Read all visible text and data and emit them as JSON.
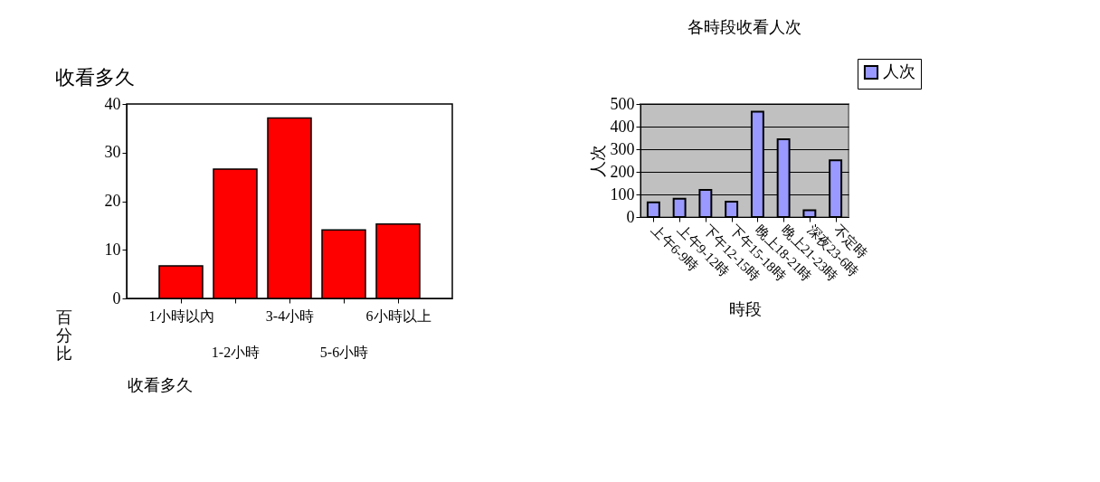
{
  "chart_data": [
    {
      "type": "bar",
      "title": "收看多久",
      "xlabel": "收看多久",
      "ylabel": "百分比",
      "categories": [
        "1小時以內",
        "1-2小時",
        "3-4小時",
        "5-6小時",
        "6小時以上"
      ],
      "values": [
        6.7,
        26.6,
        37.1,
        14.1,
        15.3
      ],
      "color": "#ff0000",
      "ylim": [
        0,
        40
      ],
      "yticks": [
        0,
        10,
        20,
        30,
        40
      ],
      "grid": false,
      "legend": false
    },
    {
      "type": "bar",
      "title": "各時段收看人次",
      "xlabel": "時段",
      "ylabel": "人次",
      "categories": [
        "上午6-9時",
        "上午9-12時",
        "下午12-15時",
        "下午15-18時",
        "晚上18-21時",
        "晚上21-23時",
        "深夜23-6時",
        "不定時"
      ],
      "series": [
        {
          "name": "人次",
          "color": "#9999ff",
          "values": [
            65,
            81,
            120,
            68,
            466,
            344,
            30,
            251
          ]
        }
      ],
      "ylim": [
        0,
        500
      ],
      "yticks": [
        0,
        100,
        200,
        300,
        400,
        500
      ],
      "grid": "y",
      "legend": "top right"
    }
  ]
}
